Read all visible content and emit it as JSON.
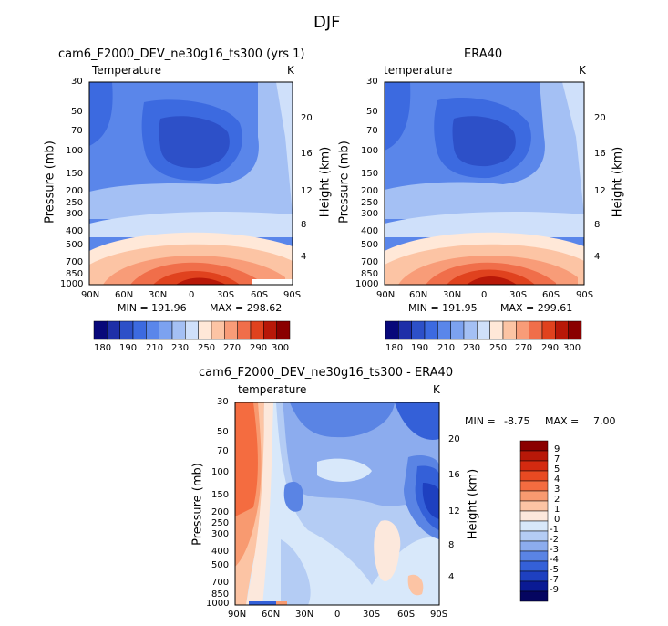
{
  "figure_title": "DJF",
  "chart_data": [
    {
      "type": "heatmap",
      "title": "cam6_F2000_DEV_ne30g16_ts300 (yrs 1)",
      "subtitle": "Temperature",
      "units": "K",
      "xlabel": "",
      "ylabel": "Pressure (mb)",
      "ylabel_right": "Height (km)",
      "x_ticks": [
        "90N",
        "60N",
        "30N",
        "0",
        "30S",
        "60S",
        "90S"
      ],
      "y_ticks": [
        "30",
        "50",
        "70",
        "100",
        "150",
        "200",
        "250",
        "300",
        "400",
        "500",
        "700",
        "850",
        "1000"
      ],
      "y_ticks_right": [
        "20",
        "16",
        "12",
        "8",
        "4"
      ],
      "min_label": "MIN = 191.96",
      "max_label": "MAX = 298.62",
      "colorbar_ticks": [
        "180",
        "190",
        "200",
        "210",
        "220",
        "230",
        "240",
        "250",
        "260",
        "270",
        "280",
        "290",
        "300"
      ],
      "colorbar_labels_shown": [
        "180",
        "190",
        "210",
        "230",
        "250",
        "270",
        "290",
        "300"
      ]
    },
    {
      "type": "heatmap",
      "title": "ERA40",
      "subtitle": "temperature",
      "units": "K",
      "xlabel": "",
      "ylabel": "Pressure (mb)",
      "ylabel_right": "Height (km)",
      "x_ticks": [
        "90N",
        "60N",
        "30N",
        "0",
        "30S",
        "60S",
        "90S"
      ],
      "y_ticks": [
        "30",
        "50",
        "70",
        "100",
        "150",
        "200",
        "250",
        "300",
        "400",
        "500",
        "700",
        "850",
        "1000"
      ],
      "y_ticks_right": [
        "20",
        "16",
        "12",
        "8",
        "4"
      ],
      "min_label": "MIN = 191.95",
      "max_label": "MAX = 299.61",
      "colorbar_ticks": [
        "180",
        "190",
        "200",
        "210",
        "220",
        "230",
        "240",
        "250",
        "260",
        "270",
        "280",
        "290",
        "300"
      ],
      "colorbar_labels_shown": [
        "180",
        "190",
        "210",
        "230",
        "250",
        "270",
        "290",
        "300"
      ]
    },
    {
      "type": "heatmap",
      "title": "cam6_F2000_DEV_ne30g16_ts300 - ERA40",
      "subtitle": "temperature",
      "units": "K",
      "xlabel": "",
      "ylabel": "Pressure (mb)",
      "ylabel_right": "Height (km)",
      "x_ticks": [
        "90N",
        "60N",
        "30N",
        "0",
        "30S",
        "60S",
        "90S"
      ],
      "y_ticks": [
        "30",
        "50",
        "70",
        "100",
        "150",
        "200",
        "250",
        "300",
        "400",
        "500",
        "700",
        "850",
        "1000"
      ],
      "y_ticks_right": [
        "20",
        "16",
        "12",
        "8",
        "4"
      ],
      "min_label": "MIN =",
      "min_value": "-8.75",
      "max_label": "MAX =",
      "max_value": "7.00",
      "colorbar_levels": [
        "9",
        "7",
        "5",
        "4",
        "3",
        "2",
        "1",
        "0",
        "-1",
        "-2",
        "-3",
        "-4",
        "-5",
        "-7",
        "-9"
      ]
    }
  ],
  "colors": {
    "temp_scale": [
      "#08087a",
      "#1e2fa8",
      "#2d50c8",
      "#3c6ae0",
      "#5a86ea",
      "#7ca2f0",
      "#a4c0f4",
      "#cfe0fa",
      "#ffe8d8",
      "#fcc4a4",
      "#f89c78",
      "#f06e4a",
      "#e0421e",
      "#b81808",
      "#8a0000"
    ],
    "diff_scale": [
      "#8a0000",
      "#b81808",
      "#d42a10",
      "#e84a22",
      "#f46c40",
      "#f89a70",
      "#fcc4a4",
      "#fce8dc",
      "#d8e8fa",
      "#b4ccf4",
      "#8cacee",
      "#5a84e4",
      "#3460d8",
      "#1e40c0",
      "#0a1a94",
      "#050560"
    ]
  }
}
